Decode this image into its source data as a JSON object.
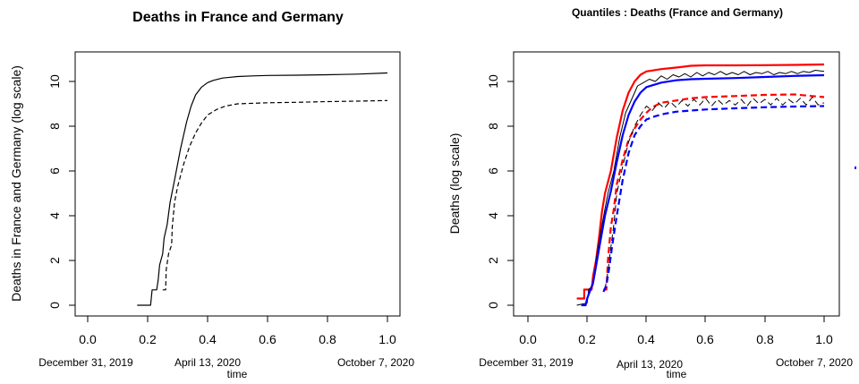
{
  "chart_data": [
    {
      "type": "line",
      "title": "Deaths in France and Germany",
      "xlabel": "time",
      "ylabel": "Deaths in France and Germany (log scale)",
      "xlim": [
        0,
        1
      ],
      "ylim": [
        0,
        11
      ],
      "x_ticks": [
        "0.0",
        "0.2",
        "0.4",
        "0.6",
        "0.8",
        "1.0"
      ],
      "y_ticks": [
        "0",
        "2",
        "4",
        "6",
        "8",
        "10"
      ],
      "date_labels": [
        {
          "x": 0.0,
          "label": "December 31, 2019"
        },
        {
          "x": 0.41,
          "label": "April 13, 2020"
        },
        {
          "x": 1.0,
          "label": "October 7, 2020"
        }
      ],
      "grid": false,
      "legend": "none",
      "series": [
        {
          "style": "solid",
          "color": "#000000",
          "points": [
            [
              0.165,
              0
            ],
            [
              0.21,
              0
            ],
            [
              0.215,
              0.69
            ],
            [
              0.23,
              0.69
            ],
            [
              0.235,
              1.1
            ],
            [
              0.24,
              1.8
            ],
            [
              0.25,
              2.3
            ],
            [
              0.255,
              3.0
            ],
            [
              0.265,
              3.6
            ],
            [
              0.275,
              4.6
            ],
            [
              0.29,
              5.6
            ],
            [
              0.31,
              7.0
            ],
            [
              0.33,
              8.2
            ],
            [
              0.345,
              8.9
            ],
            [
              0.36,
              9.4
            ],
            [
              0.38,
              9.75
            ],
            [
              0.4,
              9.95
            ],
            [
              0.42,
              10.05
            ],
            [
              0.45,
              10.15
            ],
            [
              0.5,
              10.22
            ],
            [
              0.55,
              10.25
            ],
            [
              0.6,
              10.27
            ],
            [
              0.7,
              10.28
            ],
            [
              0.8,
              10.3
            ],
            [
              0.9,
              10.33
            ],
            [
              1.0,
              10.38
            ]
          ]
        },
        {
          "style": "dashed",
          "color": "#000000",
          "points": [
            [
              0.25,
              0.69
            ],
            [
              0.26,
              0.69
            ],
            [
              0.262,
              1.6
            ],
            [
              0.27,
              2.3
            ],
            [
              0.28,
              2.7
            ],
            [
              0.282,
              3.5
            ],
            [
              0.29,
              4.6
            ],
            [
              0.3,
              5.3
            ],
            [
              0.32,
              6.3
            ],
            [
              0.34,
              7.1
            ],
            [
              0.36,
              7.7
            ],
            [
              0.38,
              8.15
            ],
            [
              0.4,
              8.5
            ],
            [
              0.43,
              8.75
            ],
            [
              0.46,
              8.9
            ],
            [
              0.5,
              9.0
            ],
            [
              0.6,
              9.05
            ],
            [
              0.7,
              9.07
            ],
            [
              0.8,
              9.1
            ],
            [
              0.9,
              9.12
            ],
            [
              1.0,
              9.15
            ]
          ]
        }
      ]
    },
    {
      "type": "line",
      "title": "Quantiles : Deaths (France and Germany)",
      "xlabel": "time",
      "ylabel": "Deaths (log scale)",
      "xlim": [
        0,
        1
      ],
      "ylim": [
        0,
        11
      ],
      "x_ticks": [
        "0.0",
        "0.2",
        "0.4",
        "0.6",
        "0.8",
        "1.0"
      ],
      "y_ticks": [
        "0",
        "2",
        "4",
        "6",
        "8",
        "10"
      ],
      "date_labels": [
        {
          "x": 0.0,
          "label": "December 31, 2019"
        },
        {
          "x": 0.41,
          "label": "April 13, 2020"
        },
        {
          "x": 1.0,
          "label": "October 7, 2020"
        }
      ],
      "grid": false,
      "legend": "none",
      "series": [
        {
          "style": "solid",
          "color": "#ff0000",
          "points": [
            [
              0.165,
              0.3
            ],
            [
              0.19,
              0.3
            ],
            [
              0.19,
              0.7
            ],
            [
              0.215,
              0.7
            ],
            [
              0.22,
              1.3
            ],
            [
              0.23,
              2.0
            ],
            [
              0.24,
              3.0
            ],
            [
              0.25,
              4.2
            ],
            [
              0.26,
              5.0
            ],
            [
              0.28,
              6.0
            ],
            [
              0.3,
              7.5
            ],
            [
              0.32,
              8.7
            ],
            [
              0.34,
              9.5
            ],
            [
              0.36,
              10.0
            ],
            [
              0.38,
              10.3
            ],
            [
              0.4,
              10.45
            ],
            [
              0.45,
              10.55
            ],
            [
              0.5,
              10.62
            ],
            [
              0.55,
              10.7
            ],
            [
              0.6,
              10.72
            ],
            [
              0.7,
              10.72
            ],
            [
              0.8,
              10.73
            ],
            [
              0.9,
              10.74
            ],
            [
              1.0,
              10.76
            ]
          ]
        },
        {
          "style": "solid",
          "color": "#000000",
          "points": [
            [
              0.165,
              0
            ],
            [
              0.2,
              0.1
            ],
            [
              0.205,
              0.7
            ],
            [
              0.22,
              0.9
            ],
            [
              0.23,
              2.0
            ],
            [
              0.25,
              3.6
            ],
            [
              0.26,
              4.3
            ],
            [
              0.27,
              5.0
            ],
            [
              0.29,
              6.0
            ],
            [
              0.31,
              7.5
            ],
            [
              0.33,
              8.6
            ],
            [
              0.35,
              9.2
            ],
            [
              0.37,
              9.8
            ],
            [
              0.39,
              9.95
            ],
            [
              0.41,
              10.1
            ],
            [
              0.43,
              10.0
            ],
            [
              0.45,
              10.25
            ],
            [
              0.47,
              10.1
            ],
            [
              0.49,
              10.3
            ],
            [
              0.51,
              10.2
            ],
            [
              0.53,
              10.35
            ],
            [
              0.55,
              10.2
            ],
            [
              0.57,
              10.4
            ],
            [
              0.59,
              10.25
            ],
            [
              0.61,
              10.4
            ],
            [
              0.63,
              10.3
            ],
            [
              0.65,
              10.45
            ],
            [
              0.67,
              10.3
            ],
            [
              0.69,
              10.4
            ],
            [
              0.71,
              10.3
            ],
            [
              0.73,
              10.45
            ],
            [
              0.75,
              10.3
            ],
            [
              0.77,
              10.4
            ],
            [
              0.79,
              10.35
            ],
            [
              0.81,
              10.45
            ],
            [
              0.83,
              10.3
            ],
            [
              0.85,
              10.4
            ],
            [
              0.87,
              10.35
            ],
            [
              0.89,
              10.45
            ],
            [
              0.91,
              10.35
            ],
            [
              0.93,
              10.45
            ],
            [
              0.95,
              10.4
            ],
            [
              0.97,
              10.5
            ],
            [
              1.0,
              10.45
            ]
          ]
        },
        {
          "style": "solid",
          "color": "#0000ff",
          "points": [
            [
              0.18,
              0
            ],
            [
              0.195,
              0
            ],
            [
              0.2,
              0.3
            ],
            [
              0.22,
              1.0
            ],
            [
              0.24,
              2.5
            ],
            [
              0.26,
              4.0
            ],
            [
              0.28,
              5.1
            ],
            [
              0.3,
              6.4
            ],
            [
              0.32,
              7.6
            ],
            [
              0.34,
              8.5
            ],
            [
              0.36,
              9.1
            ],
            [
              0.38,
              9.5
            ],
            [
              0.4,
              9.75
            ],
            [
              0.45,
              9.95
            ],
            [
              0.5,
              10.05
            ],
            [
              0.55,
              10.1
            ],
            [
              0.6,
              10.12
            ],
            [
              0.7,
              10.15
            ],
            [
              0.8,
              10.2
            ],
            [
              0.9,
              10.25
            ],
            [
              1.0,
              10.28
            ]
          ]
        },
        {
          "style": "dashed",
          "color": "#ff0000",
          "points": [
            [
              0.255,
              0.7
            ],
            [
              0.265,
              0.7
            ],
            [
              0.27,
              2.0
            ],
            [
              0.28,
              3.5
            ],
            [
              0.29,
              4.3
            ],
            [
              0.3,
              5.4
            ],
            [
              0.32,
              6.5
            ],
            [
              0.34,
              7.4
            ],
            [
              0.36,
              7.9
            ],
            [
              0.38,
              8.3
            ],
            [
              0.4,
              8.6
            ],
            [
              0.42,
              8.85
            ],
            [
              0.45,
              9.05
            ],
            [
              0.5,
              9.15
            ],
            [
              0.55,
              9.25
            ],
            [
              0.6,
              9.3
            ],
            [
              0.7,
              9.35
            ],
            [
              0.8,
              9.4
            ],
            [
              0.9,
              9.42
            ],
            [
              1.0,
              9.3
            ]
          ]
        },
        {
          "style": "dashed",
          "color": "#000000",
          "points": [
            [
              0.26,
              0.7
            ],
            [
              0.27,
              1.5
            ],
            [
              0.28,
              2.6
            ],
            [
              0.29,
              3.6
            ],
            [
              0.3,
              5.0
            ],
            [
              0.32,
              6.2
            ],
            [
              0.34,
              7.3
            ],
            [
              0.36,
              8.0
            ],
            [
              0.38,
              8.5
            ],
            [
              0.4,
              8.9
            ],
            [
              0.42,
              8.7
            ],
            [
              0.44,
              9.05
            ],
            [
              0.46,
              8.8
            ],
            [
              0.48,
              9.1
            ],
            [
              0.5,
              8.85
            ],
            [
              0.52,
              9.15
            ],
            [
              0.54,
              8.9
            ],
            [
              0.56,
              9.2
            ],
            [
              0.58,
              8.95
            ],
            [
              0.6,
              9.25
            ],
            [
              0.62,
              8.9
            ],
            [
              0.64,
              9.2
            ],
            [
              0.66,
              8.95
            ],
            [
              0.68,
              9.15
            ],
            [
              0.7,
              8.95
            ],
            [
              0.72,
              9.2
            ],
            [
              0.74,
              8.9
            ],
            [
              0.76,
              9.25
            ],
            [
              0.78,
              9.0
            ],
            [
              0.8,
              9.2
            ],
            [
              0.82,
              8.95
            ],
            [
              0.84,
              9.25
            ],
            [
              0.86,
              8.95
            ],
            [
              0.88,
              9.2
            ],
            [
              0.9,
              9.0
            ],
            [
              0.92,
              9.25
            ],
            [
              0.94,
              8.95
            ],
            [
              0.96,
              9.3
            ],
            [
              0.98,
              8.95
            ],
            [
              1.0,
              9.05
            ]
          ]
        },
        {
          "style": "dashed",
          "color": "#0000ff",
          "points": [
            [
              0.255,
              0.6
            ],
            [
              0.265,
              0.9
            ],
            [
              0.275,
              1.7
            ],
            [
              0.285,
              2.7
            ],
            [
              0.3,
              4.0
            ],
            [
              0.32,
              5.6
            ],
            [
              0.34,
              6.8
            ],
            [
              0.36,
              7.6
            ],
            [
              0.38,
              8.0
            ],
            [
              0.4,
              8.3
            ],
            [
              0.43,
              8.45
            ],
            [
              0.46,
              8.55
            ],
            [
              0.5,
              8.65
            ],
            [
              0.55,
              8.7
            ],
            [
              0.6,
              8.75
            ],
            [
              0.7,
              8.8
            ],
            [
              0.8,
              8.85
            ],
            [
              0.9,
              8.88
            ],
            [
              1.0,
              8.9
            ]
          ]
        }
      ]
    }
  ]
}
